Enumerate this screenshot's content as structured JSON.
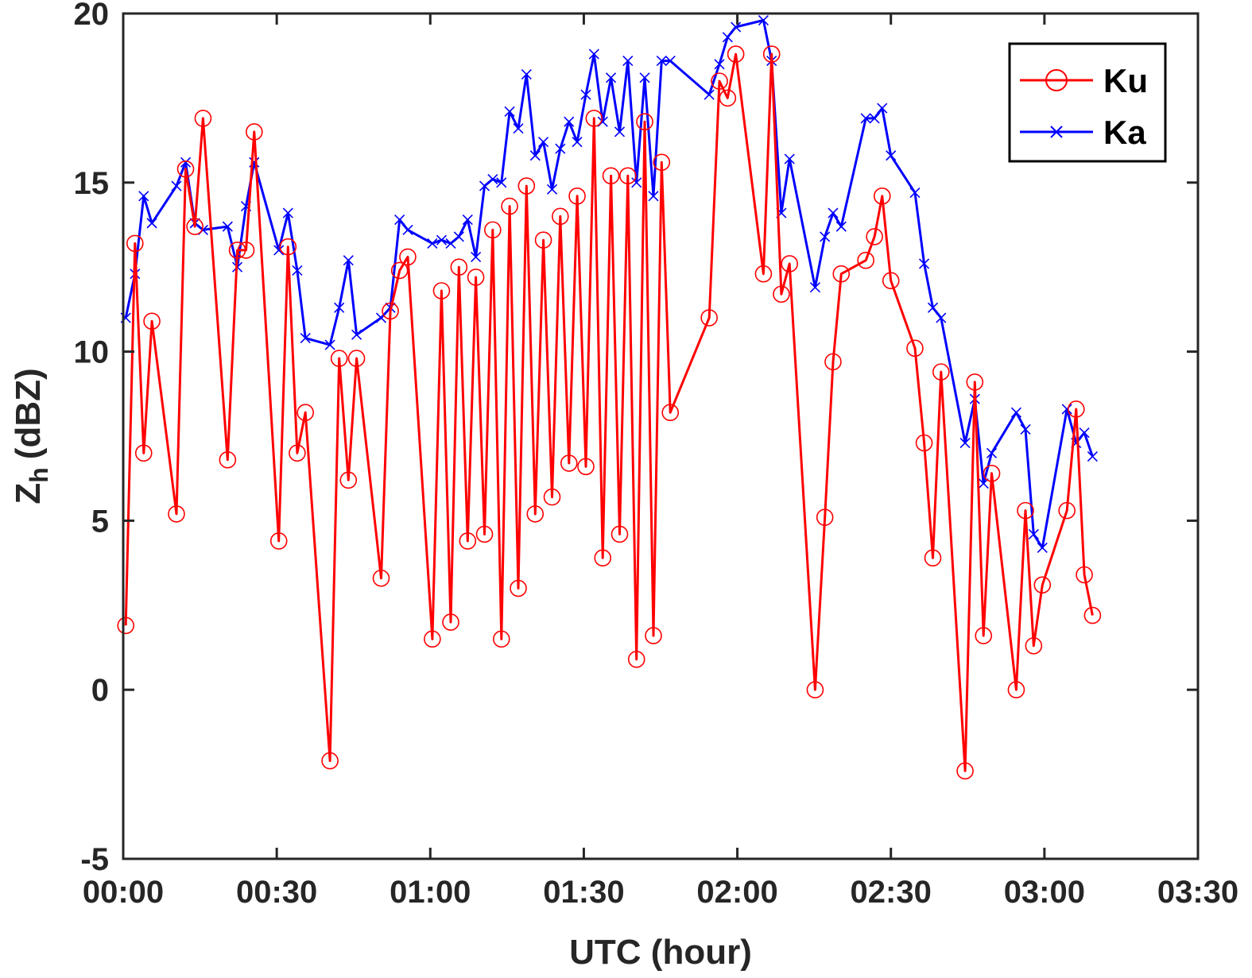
{
  "chart_data": {
    "type": "line",
    "xlabel": "UTC (hour)",
    "ylabel": "Z",
    "ylabel_subscript": "h",
    "ylabel_unit": "(dBZ)",
    "xlim": [
      0,
      210
    ],
    "ylim": [
      -5,
      20
    ],
    "x_unit": "minutes after 00:00 UTC",
    "xticks": [
      0,
      30,
      60,
      90,
      120,
      150,
      180,
      210
    ],
    "xtick_labels": [
      "00:00",
      "00:30",
      "01:00",
      "01:30",
      "02:00",
      "02:30",
      "03:00",
      "03:30"
    ],
    "yticks": [
      -5,
      0,
      5,
      10,
      15,
      20
    ],
    "ytick_labels": [
      "-5",
      "0",
      "5",
      "10",
      "15",
      "20"
    ],
    "grid": false,
    "legend_position": "top-right",
    "series": [
      {
        "name": "Ku",
        "color": "#ff0000",
        "marker": "circle",
        "points": [
          [
            0.5,
            1.9
          ],
          [
            2.3,
            13.2
          ],
          [
            4.0,
            7.0
          ],
          [
            5.6,
            10.9
          ],
          [
            10.4,
            5.2
          ],
          [
            12.2,
            15.4
          ],
          [
            14.0,
            13.7
          ],
          [
            15.6,
            16.9
          ],
          [
            20.4,
            6.8
          ],
          [
            22.3,
            13.0
          ],
          [
            24.0,
            13.0
          ],
          [
            25.6,
            16.5
          ],
          [
            30.4,
            4.4
          ],
          [
            32.2,
            13.1
          ],
          [
            34.0,
            7.0
          ],
          [
            35.6,
            8.2
          ],
          [
            40.4,
            -2.1
          ],
          [
            42.2,
            9.8
          ],
          [
            44.0,
            6.2
          ],
          [
            45.6,
            9.8
          ],
          [
            50.4,
            3.3
          ],
          [
            52.2,
            11.2
          ],
          [
            54.0,
            12.4
          ],
          [
            55.6,
            12.8
          ],
          [
            60.4,
            1.5
          ],
          [
            62.2,
            11.8
          ],
          [
            64.0,
            2.0
          ],
          [
            65.6,
            12.5
          ],
          [
            67.3,
            4.4
          ],
          [
            68.9,
            12.2
          ],
          [
            70.6,
            4.6
          ],
          [
            72.2,
            13.6
          ],
          [
            73.9,
            1.5
          ],
          [
            75.5,
            14.3
          ],
          [
            77.2,
            3.0
          ],
          [
            78.8,
            14.9
          ],
          [
            80.5,
            5.2
          ],
          [
            82.1,
            13.3
          ],
          [
            83.8,
            5.7
          ],
          [
            85.4,
            14.0
          ],
          [
            87.1,
            6.7
          ],
          [
            88.7,
            14.6
          ],
          [
            90.4,
            6.6
          ],
          [
            92.0,
            16.9
          ],
          [
            93.7,
            3.9
          ],
          [
            95.3,
            15.2
          ],
          [
            97.0,
            4.6
          ],
          [
            98.6,
            15.2
          ],
          [
            100.3,
            0.9
          ],
          [
            101.9,
            16.8
          ],
          [
            103.6,
            1.6
          ],
          [
            105.2,
            15.6
          ],
          [
            106.9,
            8.2
          ],
          [
            114.5,
            11.0
          ],
          [
            116.5,
            18.0
          ],
          [
            118.1,
            17.5
          ],
          [
            119.7,
            18.8
          ],
          [
            125.1,
            12.3
          ],
          [
            126.7,
            18.8
          ],
          [
            128.6,
            11.7
          ],
          [
            130.2,
            12.6
          ],
          [
            135.2,
            0.0
          ],
          [
            137.1,
            5.1
          ],
          [
            138.7,
            9.7
          ],
          [
            140.3,
            12.3
          ],
          [
            145.1,
            12.7
          ],
          [
            146.8,
            13.4
          ],
          [
            148.3,
            14.6
          ],
          [
            150.0,
            12.1
          ],
          [
            154.7,
            10.1
          ],
          [
            156.5,
            7.3
          ],
          [
            158.2,
            3.9
          ],
          [
            159.8,
            9.4
          ],
          [
            164.5,
            -2.4
          ],
          [
            166.4,
            9.1
          ],
          [
            168.1,
            1.6
          ],
          [
            169.7,
            6.4
          ],
          [
            174.5,
            0.0
          ],
          [
            176.3,
            5.3
          ],
          [
            177.9,
            1.3
          ],
          [
            179.6,
            3.1
          ],
          [
            184.4,
            5.3
          ],
          [
            186.2,
            8.3
          ],
          [
            187.8,
            3.4
          ],
          [
            189.4,
            2.2
          ]
        ]
      },
      {
        "name": "Ka",
        "color": "#0000ff",
        "marker": "x",
        "points": [
          [
            0.5,
            11.0
          ],
          [
            2.3,
            12.3
          ],
          [
            4.0,
            14.6
          ],
          [
            5.6,
            13.8
          ],
          [
            10.4,
            14.9
          ],
          [
            12.2,
            15.6
          ],
          [
            14.0,
            13.8
          ],
          [
            15.6,
            13.6
          ],
          [
            20.4,
            13.7
          ],
          [
            22.3,
            12.5
          ],
          [
            24.0,
            14.3
          ],
          [
            25.6,
            15.6
          ],
          [
            30.4,
            13.0
          ],
          [
            32.2,
            14.1
          ],
          [
            34.0,
            12.4
          ],
          [
            35.6,
            10.4
          ],
          [
            40.4,
            10.2
          ],
          [
            42.2,
            11.3
          ],
          [
            44.0,
            12.7
          ],
          [
            45.6,
            10.5
          ],
          [
            50.4,
            11.0
          ],
          [
            52.2,
            11.3
          ],
          [
            54.0,
            13.9
          ],
          [
            55.6,
            13.6
          ],
          [
            60.4,
            13.2
          ],
          [
            62.2,
            13.3
          ],
          [
            64.0,
            13.2
          ],
          [
            65.6,
            13.4
          ],
          [
            67.3,
            13.9
          ],
          [
            68.9,
            12.8
          ],
          [
            70.6,
            14.9
          ],
          [
            72.2,
            15.1
          ],
          [
            73.9,
            15.0
          ],
          [
            75.5,
            17.1
          ],
          [
            77.2,
            16.6
          ],
          [
            78.8,
            18.2
          ],
          [
            80.5,
            15.8
          ],
          [
            82.1,
            16.2
          ],
          [
            83.8,
            14.8
          ],
          [
            85.4,
            16.0
          ],
          [
            87.1,
            16.8
          ],
          [
            88.7,
            16.2
          ],
          [
            90.4,
            17.6
          ],
          [
            92.0,
            18.8
          ],
          [
            93.7,
            16.8
          ],
          [
            95.3,
            18.1
          ],
          [
            97.0,
            16.5
          ],
          [
            98.6,
            18.6
          ],
          [
            100.3,
            15.0
          ],
          [
            101.9,
            18.1
          ],
          [
            103.6,
            14.6
          ],
          [
            105.2,
            18.6
          ],
          [
            106.9,
            18.6
          ],
          [
            114.5,
            17.6
          ],
          [
            116.5,
            18.5
          ],
          [
            118.1,
            19.3
          ],
          [
            119.7,
            19.6
          ],
          [
            125.1,
            19.8
          ],
          [
            126.7,
            18.6
          ],
          [
            128.6,
            14.1
          ],
          [
            130.2,
            15.7
          ],
          [
            135.2,
            11.9
          ],
          [
            137.1,
            13.4
          ],
          [
            138.7,
            14.1
          ],
          [
            140.3,
            13.7
          ],
          [
            145.1,
            16.9
          ],
          [
            146.8,
            16.9
          ],
          [
            148.3,
            17.2
          ],
          [
            150.0,
            15.8
          ],
          [
            154.7,
            14.7
          ],
          [
            156.5,
            12.6
          ],
          [
            158.2,
            11.3
          ],
          [
            159.8,
            11.0
          ],
          [
            164.5,
            7.3
          ],
          [
            166.4,
            8.6
          ],
          [
            168.1,
            6.1
          ],
          [
            169.7,
            7.0
          ],
          [
            174.5,
            8.2
          ],
          [
            176.3,
            7.7
          ],
          [
            177.9,
            4.6
          ],
          [
            179.6,
            4.2
          ],
          [
            184.4,
            8.3
          ],
          [
            186.2,
            7.3
          ],
          [
            187.8,
            7.6
          ],
          [
            189.4,
            6.9
          ]
        ]
      }
    ]
  }
}
